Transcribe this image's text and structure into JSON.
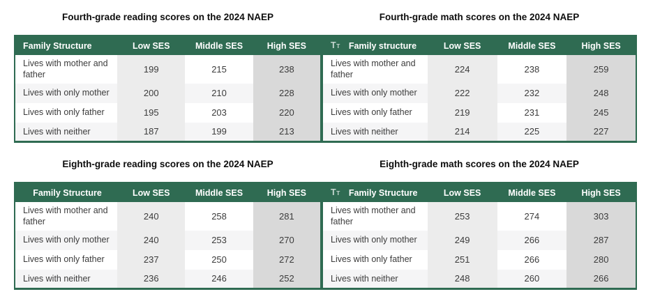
{
  "colors": {
    "header_green": "#2f6b52",
    "low_ses_column_bg": "#ececec",
    "middle_ses_column_bg": "#ffffff",
    "high_ses_column_bg": "#d9d9d9",
    "row_stripe_bg": "#f5f5f6",
    "body_text": "#3c3c3c",
    "header_text": "#ffffff"
  },
  "icons": {
    "text_format": {
      "big": "T",
      "small": "T"
    }
  },
  "chart_data": [
    {
      "type": "table",
      "title": "Fourth-grade reading scores on the 2024 NAEP",
      "columns": [
        "Family Structure",
        "Low SES",
        "Middle SES",
        "High SES"
      ],
      "header_has_icon": false,
      "header_label_align": "left",
      "rows": [
        {
          "label": "Lives with mother and father",
          "values": [
            199,
            215,
            238
          ]
        },
        {
          "label": "Lives with only mother",
          "values": [
            200,
            210,
            228
          ]
        },
        {
          "label": "Lives with only father",
          "values": [
            195,
            203,
            220
          ]
        },
        {
          "label": "Lives with neither",
          "values": [
            187,
            199,
            213
          ]
        }
      ]
    },
    {
      "type": "table",
      "title": "Fourth-grade math scores on the 2024 NAEP",
      "columns": [
        "Family structure",
        "Low SES",
        "Middle SES",
        "High SES"
      ],
      "header_has_icon": true,
      "header_label_align": "left",
      "rows": [
        {
          "label": "Lives with mother and father",
          "values": [
            224,
            238,
            259
          ]
        },
        {
          "label": "Lives with only mother",
          "values": [
            222,
            232,
            248
          ]
        },
        {
          "label": "Lives with only father",
          "values": [
            219,
            231,
            245
          ]
        },
        {
          "label": "Lives with neither",
          "values": [
            214,
            225,
            227
          ]
        }
      ]
    },
    {
      "type": "table",
      "title": "Eighth-grade reading scores on the 2024 NAEP",
      "columns": [
        "Family Structure",
        "Low SES",
        "Middle SES",
        "High SES"
      ],
      "header_has_icon": false,
      "header_label_align": "center",
      "rows": [
        {
          "label": "Lives with mother and father",
          "values": [
            240,
            258,
            281
          ]
        },
        {
          "label": "Lives with only mother",
          "values": [
            240,
            253,
            270
          ]
        },
        {
          "label": "Lives with only father",
          "values": [
            237,
            250,
            272
          ]
        },
        {
          "label": "Lives with neither",
          "values": [
            236,
            246,
            252
          ]
        }
      ]
    },
    {
      "type": "table",
      "title": "Eighth-grade math scores on the 2024 NAEP",
      "columns": [
        "Family Structure",
        "Low SES",
        "Middle SES",
        "High SES"
      ],
      "header_has_icon": true,
      "header_label_align": "left",
      "rows": [
        {
          "label": "Lives with mother and father",
          "values": [
            253,
            274,
            303
          ]
        },
        {
          "label": "Lives with only mother",
          "values": [
            249,
            266,
            287
          ]
        },
        {
          "label": "Lives with only father",
          "values": [
            251,
            266,
            280
          ]
        },
        {
          "label": "Lives with neither",
          "values": [
            248,
            260,
            266
          ]
        }
      ]
    }
  ]
}
